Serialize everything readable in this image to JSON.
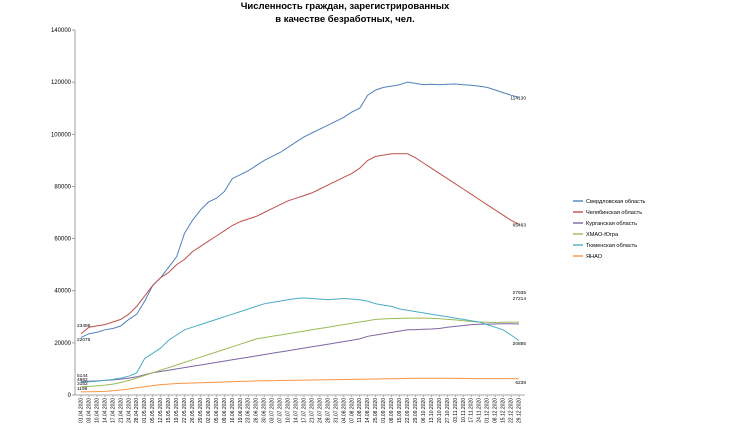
{
  "chart_data": {
    "type": "line",
    "title": "Численность граждан, зарегистрированных",
    "title_line2": "в качестве безработных, чел.",
    "xlabel": "",
    "ylabel": "",
    "ylim": [
      0,
      140000
    ],
    "yticks": [
      "0",
      "20000",
      "40000",
      "60000",
      "80000",
      "100000",
      "120000",
      "140000"
    ],
    "categories": [
      "01.04.2020",
      "03.04.2020",
      "10.04.2020",
      "14.04.2020",
      "17.04.2020",
      "21.04.2020",
      "24.04.2020",
      "28.04.2020",
      "01.05.2020",
      "05.05.2020",
      "12.05.2020",
      "15.05.2020",
      "19.05.2020",
      "22.05.2020",
      "26.05.2020",
      "29.05.2020",
      "02.06.2020",
      "05.06.2020",
      "09.06.2020",
      "16.06.2020",
      "19.06.2020",
      "23.06.2020",
      "26.06.2020",
      "30.06.2020",
      "03.07.2020",
      "07.07.2020",
      "10.07.2020",
      "14.07.2020",
      "17.07.2020",
      "21.07.2020",
      "24.07.2020",
      "28.07.2020",
      "31.07.2020",
      "04.08.2020",
      "07.08.2020",
      "11.08.2020",
      "14.08.2020",
      "25.08.2020",
      "01.09.2020",
      "08.09.2020",
      "15.09.2020",
      "22.09.2020",
      "29.09.2020",
      "06.10.2020",
      "13.10.2020",
      "20.10.2020",
      "27.10.2020",
      "03.11.2020",
      "10.11.2020",
      "17.11.2020",
      "24.11.2020",
      "01.12.2020",
      "08.12.2020",
      "15.12.2020",
      "22.12.2020",
      "29.12.2020"
    ],
    "series": [
      {
        "name": "Свердловская область",
        "color": "#4f81bd",
        "values": [
          22076,
          23500,
          24000,
          25000,
          25500,
          26500,
          29000,
          31000,
          36000,
          42000,
          45000,
          49000,
          53000,
          62000,
          67000,
          71000,
          74000,
          75500,
          78000,
          83000,
          84500,
          86000,
          88000,
          90000,
          91500,
          93000,
          95000,
          97000,
          99000,
          100500,
          102000,
          103500,
          105000,
          106500,
          108500,
          110000,
          115000,
          117000,
          118000,
          118500,
          119000,
          120000,
          119500,
          119000,
          119200,
          119000,
          119200,
          119300,
          119000,
          118800,
          118500,
          118000,
          117000,
          116000,
          115000,
          114130
        ]
      },
      {
        "name": "Челябинская область",
        "color": "#c0504d",
        "values": [
          23485,
          26000,
          26500,
          27000,
          28000,
          29000,
          31000,
          34000,
          38000,
          42000,
          45000,
          47000,
          50000,
          52000,
          55000,
          57000,
          59000,
          61000,
          63000,
          65000,
          66500,
          67500,
          68500,
          70000,
          71500,
          73000,
          74500,
          75500,
          76500,
          77500,
          79000,
          80500,
          82000,
          83500,
          85000,
          87000,
          90000,
          91500,
          92000,
          92500,
          92500,
          92500,
          91000,
          89000,
          87000,
          85000,
          83000,
          81000,
          79000,
          77000,
          75000,
          73000,
          71000,
          69000,
          67000,
          65463
        ]
      },
      {
        "name": "Курганская область",
        "color": "#8064a2",
        "values": [
          5144,
          5300,
          5400,
          5600,
          5800,
          6100,
          6500,
          7000,
          7800,
          8500,
          9000,
          9500,
          10000,
          10500,
          11000,
          11500,
          12000,
          12500,
          13000,
          13500,
          14000,
          14500,
          15000,
          15500,
          16000,
          16500,
          17000,
          17500,
          18000,
          18500,
          19000,
          19500,
          20000,
          20500,
          21000,
          21500,
          22500,
          23000,
          23500,
          24000,
          24500,
          25000,
          25000,
          25200,
          25300,
          25500,
          26000,
          26300,
          26600,
          27000,
          27100,
          27200,
          27250,
          27300,
          27300,
          27214
        ]
      },
      {
        "name": "ХМАО-Югра",
        "color": "#9bbb59",
        "values": [
          3152,
          3300,
          3500,
          3800,
          4200,
          4800,
          5600,
          6500,
          7500,
          8500,
          9500,
          10500,
          11500,
          12500,
          13500,
          14500,
          15500,
          16500,
          17500,
          18500,
          19500,
          20500,
          21500,
          22000,
          22500,
          23000,
          23500,
          24000,
          24500,
          25000,
          25500,
          26000,
          26500,
          27000,
          27500,
          28000,
          28500,
          29000,
          29200,
          29300,
          29400,
          29500,
          29500,
          29500,
          29400,
          29300,
          29000,
          28800,
          28500,
          28200,
          28000,
          27900,
          27800,
          27900,
          27950,
          27935
        ]
      },
      {
        "name": "Тюменская область",
        "color": "#4bacc6",
        "values": [
          4882,
          5100,
          5300,
          5600,
          6000,
          6500,
          7200,
          8500,
          14000,
          16000,
          18000,
          21000,
          23000,
          25000,
          26000,
          27000,
          28000,
          29000,
          30000,
          31000,
          32000,
          33000,
          34000,
          35000,
          35500,
          36000,
          36500,
          37000,
          37200,
          37000,
          36800,
          36600,
          36800,
          37000,
          36800,
          36500,
          36000,
          35000,
          34500,
          34000,
          33000,
          32500,
          32000,
          31500,
          31000,
          30500,
          30000,
          29500,
          29000,
          28500,
          28000,
          27000,
          26000,
          25000,
          23000,
          20885
        ]
      },
      {
        "name": "ЯНАО",
        "color": "#f79646",
        "values": [
          1198,
          1250,
          1300,
          1400,
          1600,
          1900,
          2300,
          2800,
          3200,
          3600,
          4000,
          4200,
          4400,
          4500,
          4600,
          4700,
          4800,
          4900,
          5000,
          5100,
          5200,
          5300,
          5400,
          5450,
          5500,
          5550,
          5600,
          5650,
          5700,
          5750,
          5800,
          5850,
          5900,
          5950,
          6000,
          6050,
          6100,
          6150,
          6200,
          6250,
          6300,
          6350,
          6400,
          6400,
          6400,
          6400,
          6400,
          6350,
          6350,
          6300,
          6300,
          6300,
          6300,
          6300,
          6280,
          6238
        ]
      }
    ],
    "start_labels": [
      "23485",
      "22076",
      "5144",
      "4882",
      "3152",
      "1198"
    ],
    "end_labels": [
      "114130",
      "65463",
      "27935",
      "27214",
      "20885",
      "6238"
    ],
    "legend_position": "right"
  }
}
